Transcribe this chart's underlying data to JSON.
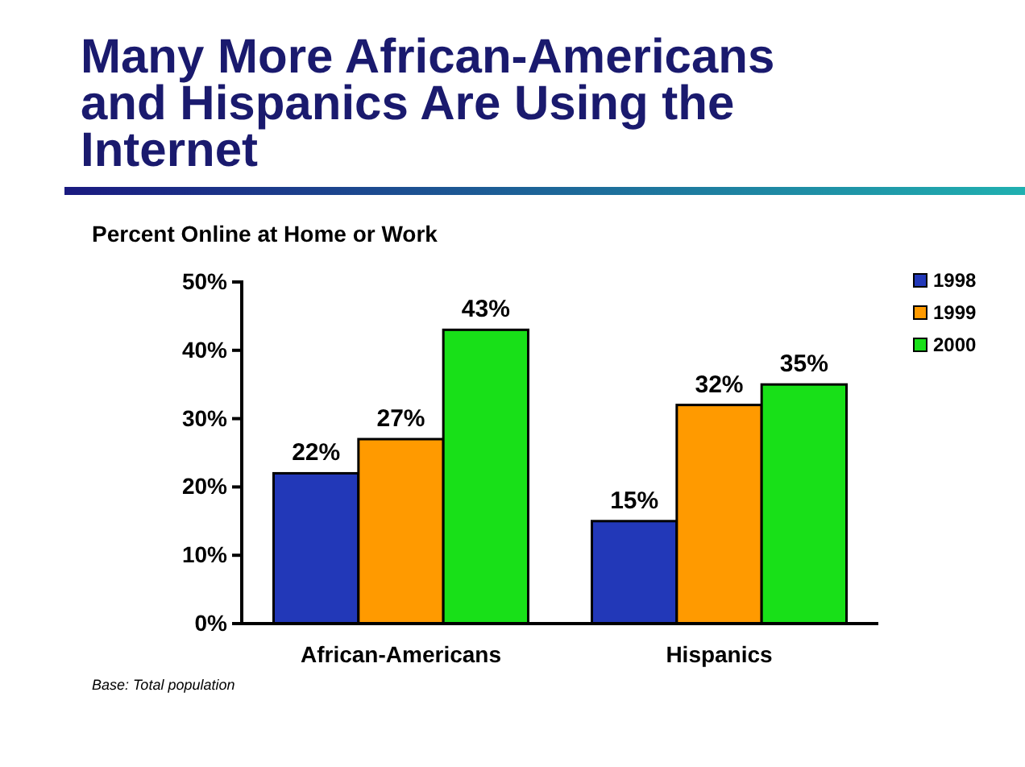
{
  "chart_data": {
    "type": "bar",
    "title": "Many More African-Americans and Hispanics Are Using the Internet",
    "subtitle": "Percent Online at Home or Work",
    "categories": [
      "African-Americans",
      "Hispanics"
    ],
    "series": [
      {
        "name": "1998",
        "color": "#2238b8",
        "values": [
          22,
          15
        ],
        "value_labels": [
          "22%",
          "15%"
        ]
      },
      {
        "name": "1999",
        "color": "#ff9a00",
        "values": [
          27,
          32
        ],
        "value_labels": [
          "27%",
          "32%"
        ]
      },
      {
        "name": "2000",
        "color": "#18e018",
        "values": [
          43,
          35
        ],
        "value_labels": [
          "43%",
          "35%"
        ]
      }
    ],
    "ylim": [
      0,
      50
    ],
    "yticks": [
      {
        "value": 0,
        "label": "0%"
      },
      {
        "value": 10,
        "label": "10%"
      },
      {
        "value": 20,
        "label": "20%"
      },
      {
        "value": 30,
        "label": "30%"
      },
      {
        "value": 40,
        "label": "40%"
      },
      {
        "value": 50,
        "label": "50%"
      }
    ],
    "grid": false,
    "legend": "top right",
    "annotations": [
      "Base: Total population"
    ]
  }
}
